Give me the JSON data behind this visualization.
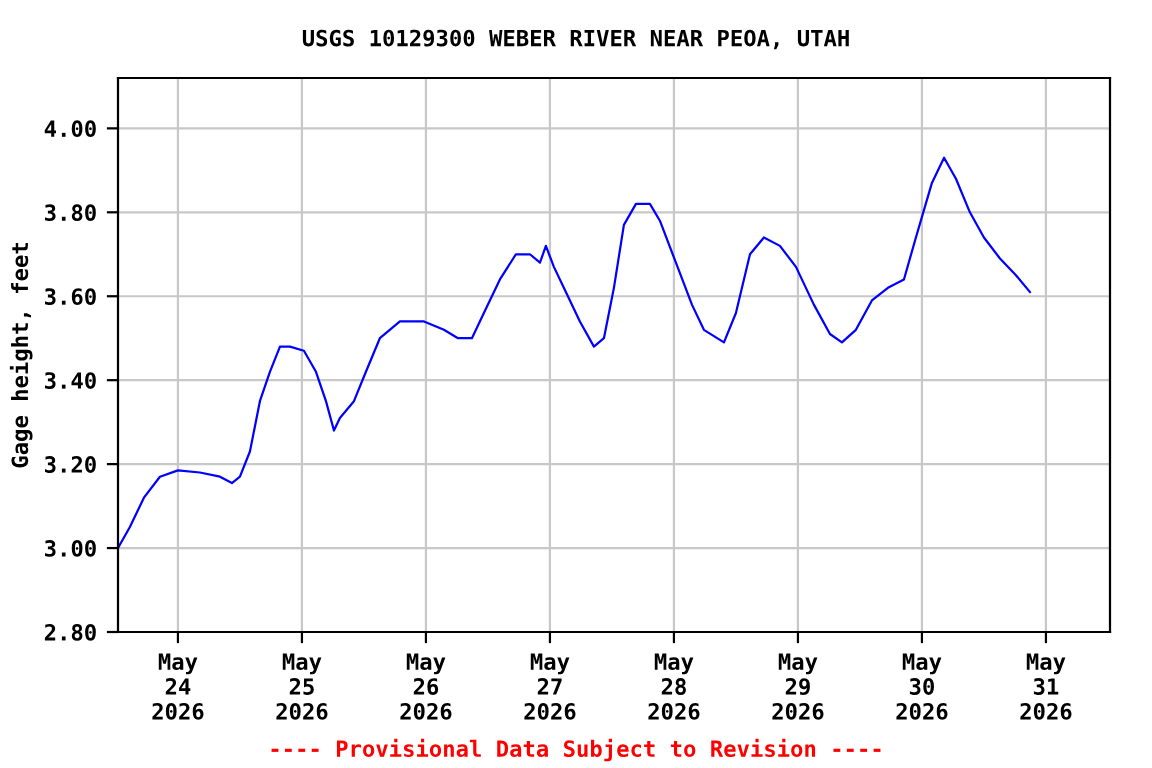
{
  "chart_data": {
    "type": "line",
    "title": "USGS 10129300 WEBER RIVER NEAR PEOA, UTAH",
    "ylabel": "Gage height, feet",
    "annotations": [
      "---- Provisional Data Subject to Revision ----"
    ],
    "x": [
      "2026-05-23T12:24",
      "2026-05-23T14:42",
      "2026-05-23T17:25",
      "2026-05-23T20:31",
      "2026-05-24T00:00",
      "2026-05-24T04:15",
      "2026-05-24T08:08",
      "2026-05-24T10:27",
      "2026-05-24T12:00",
      "2026-05-24T13:56",
      "2026-05-24T15:52",
      "2026-05-24T17:48",
      "2026-05-24T19:45",
      "2026-05-24T21:41",
      "2026-05-25T00:23",
      "2026-05-25T02:43",
      "2026-05-25T04:39",
      "2026-05-25T06:12",
      "2026-05-25T07:21",
      "2026-05-25T10:04",
      "2026-05-25T12:23",
      "2026-05-25T15:05",
      "2026-05-25T18:58",
      "2026-05-25T23:37",
      "2026-05-26T03:29",
      "2026-05-26T06:12",
      "2026-05-26T08:54",
      "2026-05-26T11:13",
      "2026-05-26T14:19",
      "2026-05-26T17:25",
      "2026-05-26T20:08",
      "2026-05-26T22:04",
      "2026-05-26T23:13",
      "2026-05-27T00:46",
      "2026-05-27T03:05",
      "2026-05-27T05:48",
      "2026-05-27T08:31",
      "2026-05-27T10:27",
      "2026-05-27T12:23",
      "2026-05-27T14:19",
      "2026-05-27T16:39",
      "2026-05-27T19:21",
      "2026-05-27T21:17",
      "2026-05-28T00:23",
      "2026-05-28T03:29",
      "2026-05-28T05:48",
      "2026-05-28T09:41",
      "2026-05-28T12:00",
      "2026-05-28T14:43",
      "2026-05-28T17:25",
      "2026-05-28T20:31",
      "2026-05-28T23:37",
      "2026-05-29T03:05",
      "2026-05-29T06:12",
      "2026-05-29T08:31",
      "2026-05-29T11:13",
      "2026-05-29T14:19",
      "2026-05-29T17:25",
      "2026-05-29T20:31",
      "2026-05-29T22:50",
      "2026-05-30T01:56",
      "2026-05-30T04:17",
      "2026-05-30T06:35",
      "2026-05-30T09:17",
      "2026-05-30T12:00",
      "2026-05-30T15:06",
      "2026-05-30T18:12",
      "2026-05-30T20:54"
    ],
    "series": [
      {
        "color": "#0000ff",
        "values": [
          3.0,
          3.05,
          3.12,
          3.17,
          3.185,
          3.18,
          3.17,
          3.155,
          3.17,
          3.23,
          3.35,
          3.42,
          3.48,
          3.48,
          3.47,
          3.42,
          3.35,
          3.28,
          3.31,
          3.35,
          3.42,
          3.5,
          3.54,
          3.54,
          3.52,
          3.5,
          3.5,
          3.56,
          3.64,
          3.7,
          3.7,
          3.68,
          3.72,
          3.67,
          3.61,
          3.54,
          3.48,
          3.5,
          3.62,
          3.77,
          3.82,
          3.82,
          3.78,
          3.68,
          3.58,
          3.52,
          3.49,
          3.56,
          3.7,
          3.74,
          3.72,
          3.67,
          3.58,
          3.51,
          3.49,
          3.52,
          3.59,
          3.62,
          3.64,
          3.74,
          3.87,
          3.93,
          3.88,
          3.8,
          3.74,
          3.69,
          3.65,
          3.61
        ]
      }
    ],
    "xlim": [
      "2026-05-23T12:24",
      "2026-05-31T12:24"
    ],
    "xticks": [
      {
        "value": "2026-05-24",
        "label": "May\n24\n2026"
      },
      {
        "value": "2026-05-25",
        "label": "May\n25\n2026"
      },
      {
        "value": "2026-05-26",
        "label": "May\n26\n2026"
      },
      {
        "value": "2026-05-27",
        "label": "May\n27\n2026"
      },
      {
        "value": "2026-05-28",
        "label": "May\n28\n2026"
      },
      {
        "value": "2026-05-29",
        "label": "May\n29\n2026"
      },
      {
        "value": "2026-05-30",
        "label": "May\n30\n2026"
      },
      {
        "value": "2026-05-31",
        "label": "May\n31\n2026"
      }
    ],
    "ylim": [
      2.8,
      4.12
    ],
    "yticks": [
      {
        "value": 2.8,
        "label": "2.80"
      },
      {
        "value": 3.0,
        "label": "3.00"
      },
      {
        "value": 3.2,
        "label": "3.20"
      },
      {
        "value": 3.4,
        "label": "3.40"
      },
      {
        "value": 3.6,
        "label": "3.60"
      },
      {
        "value": 3.8,
        "label": "3.80"
      },
      {
        "value": 4.0,
        "label": "4.00"
      }
    ],
    "grid": true,
    "line_style": "solid"
  }
}
